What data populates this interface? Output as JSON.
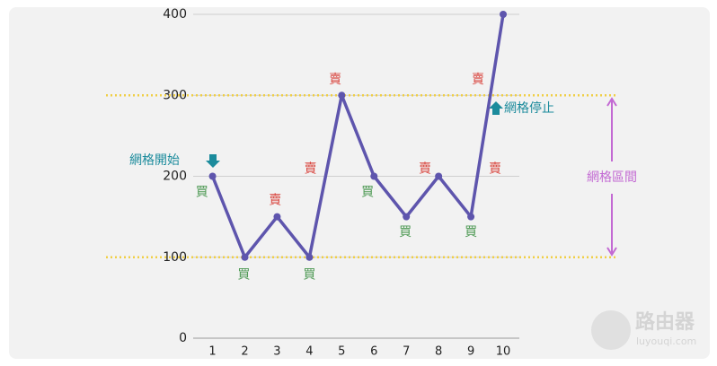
{
  "chart_data": {
    "type": "line",
    "x": [
      1,
      2,
      3,
      4,
      5,
      6,
      7,
      8,
      9,
      10
    ],
    "values": [
      200,
      100,
      150,
      100,
      300,
      200,
      150,
      200,
      150,
      400
    ],
    "color": "#5e55ad",
    "xlim": [
      0.4,
      10.5
    ],
    "xticks": [
      1,
      2,
      3,
      4,
      5,
      6,
      7,
      8,
      9,
      10
    ],
    "ylim": [
      0,
      400
    ],
    "yticks": [
      0,
      100,
      200,
      300,
      400
    ],
    "grid": true,
    "range_lines": {
      "values": [
        100,
        300
      ],
      "color": "#f0cf45"
    },
    "trade_labels": [
      {
        "label": "買",
        "x": 0.67,
        "y": 180,
        "color": "#4f9a55"
      },
      {
        "label": "買",
        "x": 1.97,
        "y": 78,
        "color": "#4f9a55"
      },
      {
        "label": "賣",
        "x": 2.94,
        "y": 170,
        "color": "#d9463f"
      },
      {
        "label": "買",
        "x": 4,
        "y": 78,
        "color": "#4f9a55"
      },
      {
        "label": "賣",
        "x": 4.03,
        "y": 209,
        "color": "#d9463f"
      },
      {
        "label": "賣",
        "x": 4.8,
        "y": 319,
        "color": "#d9463f"
      },
      {
        "label": "買",
        "x": 5.8,
        "y": 180,
        "color": "#4f9a55"
      },
      {
        "label": "買",
        "x": 6.97,
        "y": 131,
        "color": "#4f9a55"
      },
      {
        "label": "賣",
        "x": 7.58,
        "y": 209,
        "color": "#d9463f"
      },
      {
        "label": "買",
        "x": 9,
        "y": 131,
        "color": "#4f9a55"
      },
      {
        "label": "賣",
        "x": 9.22,
        "y": 319,
        "color": "#d9463f"
      },
      {
        "label": "賣",
        "x": 9.75,
        "y": 209,
        "color": "#d9463f"
      }
    ],
    "annotations": {
      "start": "網格開始",
      "stop": "網格停止",
      "range": "網格區間"
    }
  },
  "watermark": {
    "name": "路由器",
    "url": "luyouqi.com"
  }
}
